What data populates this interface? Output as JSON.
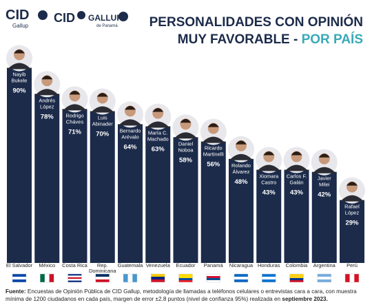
{
  "logos": [
    {
      "name": "CID",
      "sub": "Gallup"
    },
    {
      "name": "CID"
    },
    {
      "name": "GALLUP",
      "sub": "de Panamá"
    }
  ],
  "chart_data": {
    "type": "bar",
    "title_lines": [
      "PERSONALIDADES CON OPINIÓN",
      "MUY FAVORABLE - "
    ],
    "title_highlight": "POR PAÍS",
    "categories": [
      "El Salvador",
      "México",
      "Costa Rica",
      "Rep. Dominicana",
      "Guatemala",
      "Venezuela",
      "Ecuador",
      "Panamá",
      "Nicaragua",
      "Honduras",
      "Colombia",
      "Argentina",
      "Perú"
    ],
    "names": [
      [
        "Nayib",
        "Bukele"
      ],
      [
        "Andrés",
        "López"
      ],
      [
        "Rodrigo",
        "Cháves"
      ],
      [
        "Luis",
        "Abinader"
      ],
      [
        "Bernardo",
        "Arévalo"
      ],
      [
        "María C.",
        "Machado"
      ],
      [
        "Daniel",
        "Noboa"
      ],
      [
        "Ricardo",
        "Martinelli"
      ],
      [
        "Rolando",
        "Álvarez"
      ],
      [
        "Xiomara",
        "Castro"
      ],
      [
        "Carlos F.",
        "Galán"
      ],
      [
        "Javier",
        "Milei"
      ],
      [
        "Rafael",
        "López"
      ]
    ],
    "values": [
      90,
      78,
      71,
      70,
      64,
      63,
      58,
      56,
      48,
      43,
      43,
      42,
      29
    ],
    "value_labels": [
      "90%",
      "78%",
      "71%",
      "70%",
      "64%",
      "63%",
      "58%",
      "56%",
      "48%",
      "43%",
      "43%",
      "42%",
      "29%"
    ],
    "color": "#1c2b4a"
  },
  "footer": {
    "label": "Fuente:",
    "text": "Encuestas de Opinión Pública de CID Gallup, metodología de llamadas a teléfonos celulares o entrevistas cara a cara, con muestra mínima de 1200 ciudadanos en cada país, margen de error ±2.8 puntos (nivel de confianza 95%) realizada en",
    "date": "septiembre 2023."
  }
}
